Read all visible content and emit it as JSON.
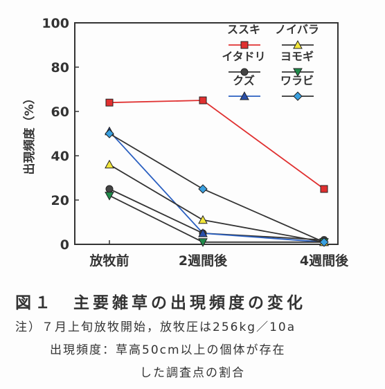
{
  "chart_data": {
    "type": "line",
    "categories": [
      "放牧前",
      "2週間後",
      "4週間後"
    ],
    "ylabel": "出現頻度（%）",
    "xlabel": "",
    "ylim": [
      0,
      100
    ],
    "yticks": [
      0,
      20,
      40,
      60,
      80,
      100
    ],
    "grid": false,
    "legend_position": "top-right",
    "series": [
      {
        "name": "ススキ",
        "values": [
          64,
          65,
          25
        ],
        "color": "#e03030",
        "marker": "square"
      },
      {
        "name": "イタドリ",
        "values": [
          25,
          5,
          2
        ],
        "color": "#333333",
        "marker": "circle"
      },
      {
        "name": "クズ",
        "values": [
          51,
          5,
          1
        ],
        "color": "#2a5fc0",
        "marker": "triangle-up"
      },
      {
        "name": "ノイバラ",
        "values": [
          36,
          11,
          1
        ],
        "color": "#333333",
        "marker": "triangle-up"
      },
      {
        "name": "ヨモギ",
        "values": [
          22,
          1,
          1
        ],
        "color": "#333333",
        "marker": "triangle-down"
      },
      {
        "name": "ワラビ",
        "values": [
          50,
          25,
          1
        ],
        "color": "#333333",
        "marker": "diamond"
      }
    ],
    "marker_fill": {
      "ススキ": "#e03030",
      "イタドリ": "#444444",
      "クズ": "#2a4fa8",
      "ノイバラ": "#f2e63c",
      "ヨモギ": "#1f8a4a",
      "ワラビ": "#3aa0e0"
    },
    "legend_order": [
      "ススキ",
      "ノイバラ",
      "イタドリ",
      "ヨモギ",
      "クズ",
      "ワラビ"
    ]
  },
  "caption": {
    "title": "図１　主要雑草の出現頻度の変化",
    "note1": "注）７月上旬放牧開始，放牧圧は256kg／10a",
    "note2": "出現頻度：草高50cm以上の個体が存在",
    "note3": "した調査点の割合"
  }
}
